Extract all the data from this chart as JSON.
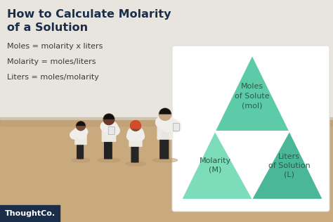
{
  "title_line1": "How to Calculate Molarity",
  "title_line2": "of a Solution",
  "title_color": "#1a2e4a",
  "wall_color": "#e8e5df",
  "floor_color": "#c8aa7e",
  "floor_shadow_color": "#b89a6e",
  "formula1": "Moles = molarity x liters",
  "formula2": "Molarity = moles/liters",
  "formula3": "Liters = moles/molarity",
  "formula_color": "#3a3a3a",
  "card_bg": "#ffffff",
  "card_border": "#dddddd",
  "tri_top_color": "#5ecba8",
  "tri_bl_color": "#7ddcba",
  "tri_br_color": "#4ab898",
  "tri_divider_color": "#3aaa88",
  "label_top": [
    "Moles",
    "of Solute",
    "(mol)"
  ],
  "label_bottom_left": [
    "Molarity",
    "(M)"
  ],
  "label_bottom_right": [
    "Liters",
    "of Solution",
    "(L)"
  ],
  "label_color": "#2a5a4a",
  "thoughtco_bg": "#1a2e4a",
  "thoughtco_text": "ThoughtCo.",
  "skin1": "#7a4a38",
  "skin2": "#6a3a28",
  "skin3": "#c8a882",
  "coat_color": "#f0eeea",
  "pants1": "#252525",
  "pants2": "#222222",
  "shirt3": "#2a4a6a",
  "hair_color": "#111111",
  "hair3": "#c8c8c8",
  "shadow_color": "#b89a6e"
}
